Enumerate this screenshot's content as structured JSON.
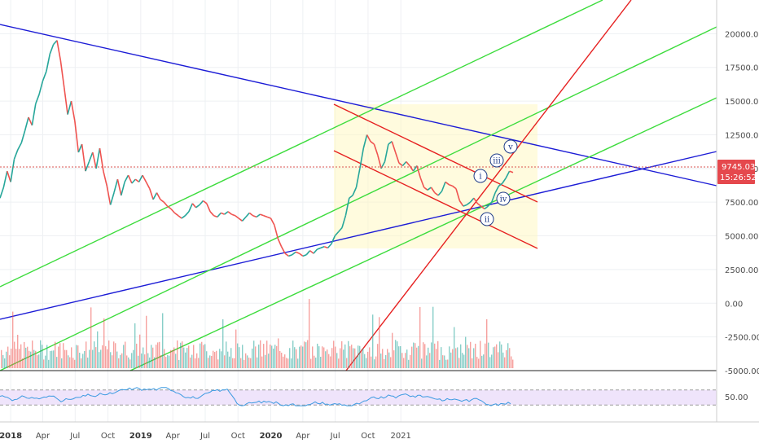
{
  "colors": {
    "price_up": "#26a69a",
    "price_down": "#ef5350",
    "trend_blue": "#1c1cd6",
    "trend_green": "#3ddc3d",
    "trend_red": "#e62020",
    "channel_fill": "#fff7c2",
    "rsi_line": "#3b9ae1",
    "rsi_band": "#efe4fb",
    "price_tag_bg": "#e5484d",
    "price_dotted": "#d9534f"
  },
  "chart_data": [
    {
      "type": "line",
      "panel": "price",
      "series": [],
      "y_ticks": [
        "20000.00",
        "17500.00",
        "15000.00",
        "12500.00",
        "10000.00",
        "7500.00",
        "5000.00",
        "2500.00",
        "0.00",
        "-2500.00",
        "-5000.00"
      ],
      "ylim": [
        -5000,
        22500
      ],
      "x_ticks": [
        "2018",
        "Apr",
        "Jul",
        "Oct",
        "2019",
        "Apr",
        "Jul",
        "Oct",
        "2020",
        "Apr",
        "Jul",
        "Oct",
        "2021"
      ],
      "bold_x_ticks": [
        "2018",
        "2019",
        "2020"
      ],
      "current_price": "9745.03",
      "countdown": "15:26:52",
      "wave_labels": [
        "i",
        "ii",
        "iii",
        "iv",
        "v"
      ],
      "price_path": [
        [
          0,
          7800
        ],
        [
          10,
          8600
        ],
        [
          20,
          9800
        ],
        [
          30,
          9000
        ],
        [
          40,
          10700
        ],
        [
          50,
          11400
        ],
        [
          60,
          11900
        ],
        [
          70,
          12800
        ],
        [
          80,
          13800
        ],
        [
          90,
          13200
        ],
        [
          100,
          14800
        ],
        [
          110,
          15500
        ],
        [
          120,
          16500
        ],
        [
          130,
          17200
        ],
        [
          140,
          18500
        ],
        [
          150,
          19200
        ],
        [
          160,
          19500
        ],
        [
          170,
          18000
        ],
        [
          180,
          16000
        ],
        [
          190,
          14000
        ],
        [
          200,
          15000
        ],
        [
          210,
          13500
        ],
        [
          220,
          11200
        ],
        [
          230,
          11800
        ],
        [
          240,
          9800
        ],
        [
          250,
          10500
        ],
        [
          260,
          11200
        ],
        [
          270,
          10000
        ],
        [
          280,
          11500
        ],
        [
          290,
          9800
        ],
        [
          300,
          8700
        ],
        [
          310,
          7300
        ],
        [
          320,
          8200
        ],
        [
          330,
          9200
        ],
        [
          340,
          8000
        ],
        [
          350,
          9000
        ],
        [
          360,
          9500
        ],
        [
          370,
          8900
        ],
        [
          380,
          9200
        ],
        [
          390,
          9000
        ],
        [
          400,
          9500
        ],
        [
          410,
          9000
        ],
        [
          420,
          8500
        ],
        [
          430,
          7700
        ],
        [
          440,
          8200
        ],
        [
          450,
          7700
        ],
        [
          460,
          7500
        ],
        [
          470,
          7200
        ],
        [
          480,
          7000
        ],
        [
          490,
          6700
        ],
        [
          500,
          6500
        ],
        [
          510,
          6300
        ],
        [
          520,
          6500
        ],
        [
          530,
          6800
        ],
        [
          540,
          7400
        ],
        [
          550,
          7100
        ],
        [
          560,
          7300
        ],
        [
          570,
          7600
        ],
        [
          580,
          7400
        ],
        [
          590,
          6800
        ],
        [
          600,
          6500
        ],
        [
          610,
          6400
        ],
        [
          620,
          6700
        ],
        [
          630,
          6600
        ],
        [
          640,
          6800
        ],
        [
          650,
          6600
        ],
        [
          660,
          6500
        ],
        [
          670,
          6300
        ],
        [
          680,
          6100
        ],
        [
          690,
          6400
        ],
        [
          700,
          6700
        ],
        [
          710,
          6500
        ],
        [
          720,
          6400
        ],
        [
          730,
          6600
        ],
        [
          740,
          6500
        ],
        [
          750,
          6400
        ],
        [
          760,
          6300
        ],
        [
          770,
          5800
        ],
        [
          780,
          4800
        ],
        [
          790,
          4200
        ],
        [
          800,
          3700
        ],
        [
          810,
          3500
        ],
        [
          820,
          3600
        ],
        [
          830,
          3800
        ],
        [
          840,
          3700
        ],
        [
          850,
          3500
        ],
        [
          860,
          3600
        ],
        [
          870,
          3900
        ],
        [
          880,
          3700
        ],
        [
          890,
          4000
        ],
        [
          900,
          4100
        ],
        [
          910,
          4200
        ],
        [
          920,
          4100
        ],
        [
          930,
          4400
        ],
        [
          940,
          5000
        ],
        [
          950,
          5300
        ],
        [
          960,
          5600
        ],
        [
          970,
          6500
        ],
        [
          980,
          7800
        ],
        [
          990,
          8000
        ],
        [
          1000,
          8600
        ],
        [
          1010,
          10000
        ],
        [
          1020,
          11500
        ],
        [
          1030,
          12500
        ],
        [
          1040,
          12000
        ],
        [
          1050,
          11800
        ],
        [
          1060,
          11000
        ],
        [
          1070,
          10000
        ],
        [
          1080,
          10500
        ],
        [
          1090,
          11800
        ],
        [
          1100,
          12000
        ],
        [
          1110,
          11200
        ],
        [
          1120,
          10400
        ],
        [
          1130,
          10200
        ],
        [
          1140,
          10500
        ],
        [
          1150,
          10200
        ],
        [
          1160,
          9800
        ],
        [
          1170,
          10200
        ],
        [
          1180,
          9300
        ],
        [
          1190,
          8600
        ],
        [
          1200,
          8400
        ],
        [
          1210,
          8600
        ],
        [
          1220,
          8200
        ],
        [
          1230,
          8000
        ],
        [
          1240,
          8300
        ],
        [
          1250,
          9000
        ],
        [
          1260,
          8800
        ],
        [
          1270,
          8700
        ],
        [
          1280,
          8500
        ],
        [
          1290,
          7600
        ],
        [
          1300,
          7200
        ],
        [
          1310,
          7300
        ],
        [
          1320,
          7500
        ],
        [
          1330,
          7800
        ],
        [
          1340,
          7400
        ],
        [
          1350,
          7200
        ],
        [
          1360,
          7000
        ],
        [
          1370,
          7200
        ],
        [
          1380,
          7500
        ],
        [
          1390,
          8200
        ],
        [
          1400,
          8700
        ],
        [
          1410,
          8900
        ],
        [
          1420,
          9300
        ],
        [
          1430,
          9800
        ],
        [
          1440,
          9700
        ]
      ]
    },
    {
      "type": "bar",
      "panel": "volume",
      "series": []
    },
    {
      "type": "line",
      "panel": "rsi",
      "y_ticks": [
        "50.00"
      ],
      "ylim": [
        0,
        100
      ],
      "band": [
        30,
        70
      ],
      "series": []
    }
  ]
}
